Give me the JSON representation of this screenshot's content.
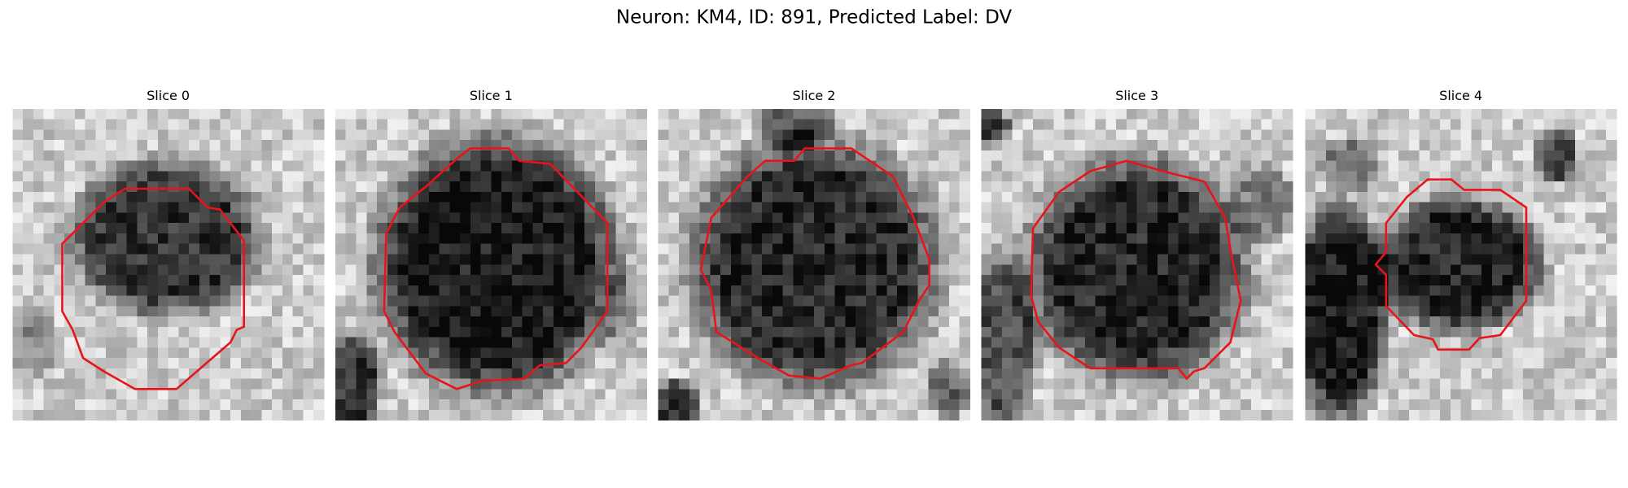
{
  "title": "Neuron: KM4, ID: 891, Predicted Label: DV",
  "panels": [
    {
      "title": "Slice 0"
    },
    {
      "title": "Slice 1"
    },
    {
      "title": "Slice 2"
    },
    {
      "title": "Slice 3"
    },
    {
      "title": "Slice 4"
    }
  ]
}
